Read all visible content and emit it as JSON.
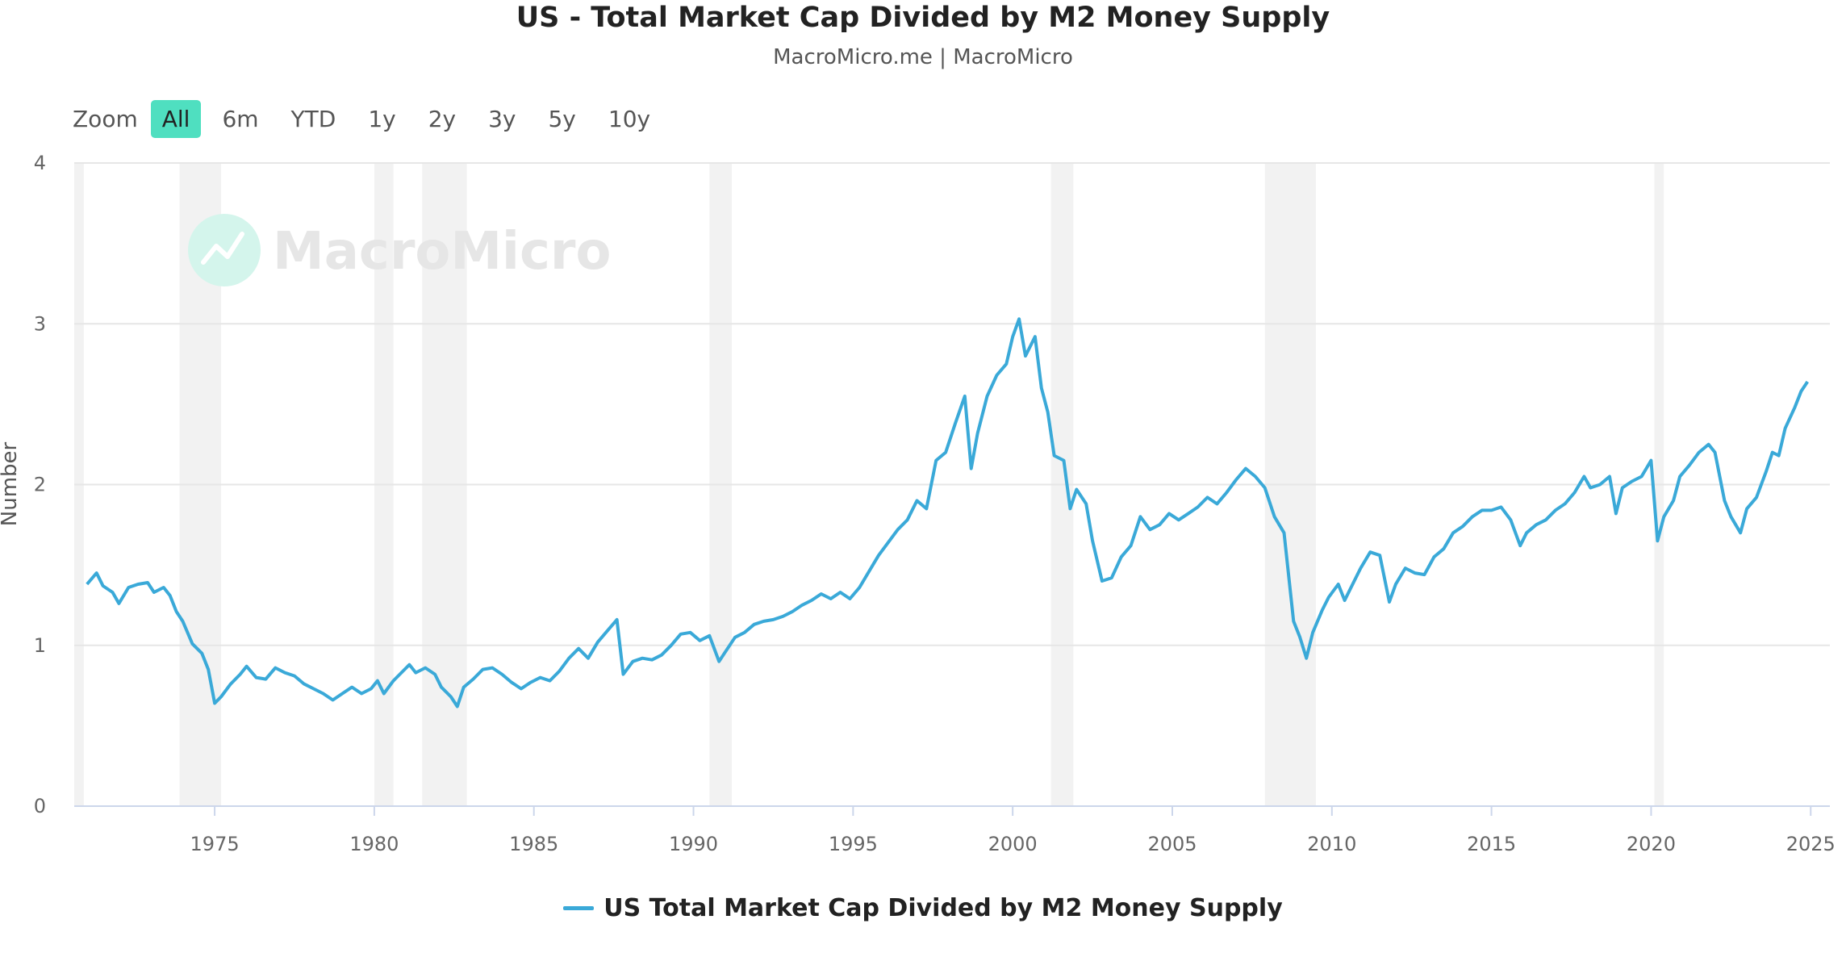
{
  "header": {
    "title": "US - Total Market Cap Divided by M2 Money Supply",
    "subtitle": "MacroMicro.me | MacroMicro"
  },
  "zoom": {
    "label": "Zoom",
    "buttons": [
      {
        "label": "All",
        "active": true
      },
      {
        "label": "6m",
        "active": false
      },
      {
        "label": "YTD",
        "active": false
      },
      {
        "label": "1y",
        "active": false
      },
      {
        "label": "2y",
        "active": false
      },
      {
        "label": "3y",
        "active": false
      },
      {
        "label": "5y",
        "active": false
      },
      {
        "label": "10y",
        "active": false
      }
    ]
  },
  "watermark": {
    "text": "MacroMicro",
    "icon": "chart-logo-icon"
  },
  "colors": {
    "series": "#3aa9d8",
    "zoom_active": "#4fdfc0",
    "recession": "#f2f2f2",
    "grid": "#e6e6e6"
  },
  "chart_data": {
    "type": "line",
    "title": "US - Total Market Cap Divided by M2 Money Supply",
    "ylabel": "Number",
    "xlabel": "",
    "xlim": [
      1970.6,
      2025.6
    ],
    "ylim": [
      0,
      4
    ],
    "y_ticks": [
      0,
      1,
      2,
      3,
      4
    ],
    "x_ticks": [
      1975,
      1980,
      1985,
      1990,
      1995,
      2000,
      2005,
      2010,
      2015,
      2020,
      2025
    ],
    "grid": true,
    "legend_position": "bottom-center",
    "recessions": [
      [
        1970.6,
        1970.9
      ],
      [
        1973.9,
        1975.2
      ],
      [
        1980.0,
        1980.6
      ],
      [
        1981.5,
        1982.9
      ],
      [
        1990.5,
        1991.2
      ],
      [
        2001.2,
        2001.9
      ],
      [
        2007.9,
        2009.5
      ],
      [
        2020.1,
        2020.4
      ]
    ],
    "series": [
      {
        "name": "US Total Market Cap Divided by M2 Money Supply",
        "points": [
          [
            1971.0,
            1.38
          ],
          [
            1971.3,
            1.45
          ],
          [
            1971.5,
            1.37
          ],
          [
            1971.8,
            1.33
          ],
          [
            1972.0,
            1.26
          ],
          [
            1972.3,
            1.36
          ],
          [
            1972.6,
            1.38
          ],
          [
            1972.9,
            1.39
          ],
          [
            1973.1,
            1.33
          ],
          [
            1973.4,
            1.36
          ],
          [
            1973.6,
            1.31
          ],
          [
            1973.8,
            1.21
          ],
          [
            1974.0,
            1.15
          ],
          [
            1974.3,
            1.01
          ],
          [
            1974.6,
            0.95
          ],
          [
            1974.8,
            0.85
          ],
          [
            1975.0,
            0.64
          ],
          [
            1975.2,
            0.68
          ],
          [
            1975.5,
            0.76
          ],
          [
            1975.8,
            0.82
          ],
          [
            1976.0,
            0.87
          ],
          [
            1976.3,
            0.8
          ],
          [
            1976.6,
            0.79
          ],
          [
            1976.9,
            0.86
          ],
          [
            1977.2,
            0.83
          ],
          [
            1977.5,
            0.81
          ],
          [
            1977.8,
            0.76
          ],
          [
            1978.1,
            0.73
          ],
          [
            1978.4,
            0.7
          ],
          [
            1978.7,
            0.66
          ],
          [
            1979.0,
            0.7
          ],
          [
            1979.3,
            0.74
          ],
          [
            1979.6,
            0.7
          ],
          [
            1979.9,
            0.73
          ],
          [
            1980.1,
            0.78
          ],
          [
            1980.3,
            0.7
          ],
          [
            1980.6,
            0.78
          ],
          [
            1980.9,
            0.84
          ],
          [
            1981.1,
            0.88
          ],
          [
            1981.3,
            0.83
          ],
          [
            1981.6,
            0.86
          ],
          [
            1981.9,
            0.82
          ],
          [
            1982.1,
            0.74
          ],
          [
            1982.4,
            0.68
          ],
          [
            1982.6,
            0.62
          ],
          [
            1982.8,
            0.74
          ],
          [
            1983.1,
            0.79
          ],
          [
            1983.4,
            0.85
          ],
          [
            1983.7,
            0.86
          ],
          [
            1984.0,
            0.82
          ],
          [
            1984.3,
            0.77
          ],
          [
            1984.6,
            0.73
          ],
          [
            1984.9,
            0.77
          ],
          [
            1985.2,
            0.8
          ],
          [
            1985.5,
            0.78
          ],
          [
            1985.8,
            0.84
          ],
          [
            1986.1,
            0.92
          ],
          [
            1986.4,
            0.98
          ],
          [
            1986.7,
            0.92
          ],
          [
            1987.0,
            1.02
          ],
          [
            1987.3,
            1.09
          ],
          [
            1987.6,
            1.16
          ],
          [
            1987.8,
            0.82
          ],
          [
            1988.1,
            0.9
          ],
          [
            1988.4,
            0.92
          ],
          [
            1988.7,
            0.91
          ],
          [
            1989.0,
            0.94
          ],
          [
            1989.3,
            1.0
          ],
          [
            1989.6,
            1.07
          ],
          [
            1989.9,
            1.08
          ],
          [
            1990.2,
            1.03
          ],
          [
            1990.5,
            1.06
          ],
          [
            1990.8,
            0.9
          ],
          [
            1991.0,
            0.96
          ],
          [
            1991.3,
            1.05
          ],
          [
            1991.6,
            1.08
          ],
          [
            1991.9,
            1.13
          ],
          [
            1992.2,
            1.15
          ],
          [
            1992.5,
            1.16
          ],
          [
            1992.8,
            1.18
          ],
          [
            1993.1,
            1.21
          ],
          [
            1993.4,
            1.25
          ],
          [
            1993.7,
            1.28
          ],
          [
            1994.0,
            1.32
          ],
          [
            1994.3,
            1.29
          ],
          [
            1994.6,
            1.33
          ],
          [
            1994.9,
            1.29
          ],
          [
            1995.2,
            1.36
          ],
          [
            1995.5,
            1.46
          ],
          [
            1995.8,
            1.56
          ],
          [
            1996.1,
            1.64
          ],
          [
            1996.4,
            1.72
          ],
          [
            1996.7,
            1.78
          ],
          [
            1997.0,
            1.9
          ],
          [
            1997.3,
            1.85
          ],
          [
            1997.6,
            2.15
          ],
          [
            1997.9,
            2.2
          ],
          [
            1998.2,
            2.38
          ],
          [
            1998.5,
            2.55
          ],
          [
            1998.7,
            2.1
          ],
          [
            1998.9,
            2.32
          ],
          [
            1999.2,
            2.55
          ],
          [
            1999.5,
            2.68
          ],
          [
            1999.8,
            2.75
          ],
          [
            2000.0,
            2.92
          ],
          [
            2000.2,
            3.03
          ],
          [
            2000.4,
            2.8
          ],
          [
            2000.7,
            2.92
          ],
          [
            2000.9,
            2.6
          ],
          [
            2001.1,
            2.45
          ],
          [
            2001.3,
            2.18
          ],
          [
            2001.6,
            2.15
          ],
          [
            2001.8,
            1.85
          ],
          [
            2002.0,
            1.97
          ],
          [
            2002.3,
            1.88
          ],
          [
            2002.5,
            1.65
          ],
          [
            2002.8,
            1.4
          ],
          [
            2003.1,
            1.42
          ],
          [
            2003.4,
            1.55
          ],
          [
            2003.7,
            1.62
          ],
          [
            2004.0,
            1.8
          ],
          [
            2004.3,
            1.72
          ],
          [
            2004.6,
            1.75
          ],
          [
            2004.9,
            1.82
          ],
          [
            2005.2,
            1.78
          ],
          [
            2005.5,
            1.82
          ],
          [
            2005.8,
            1.86
          ],
          [
            2006.1,
            1.92
          ],
          [
            2006.4,
            1.88
          ],
          [
            2006.7,
            1.95
          ],
          [
            2007.0,
            2.03
          ],
          [
            2007.3,
            2.1
          ],
          [
            2007.6,
            2.05
          ],
          [
            2007.9,
            1.98
          ],
          [
            2008.2,
            1.8
          ],
          [
            2008.5,
            1.7
          ],
          [
            2008.8,
            1.15
          ],
          [
            2009.0,
            1.05
          ],
          [
            2009.2,
            0.92
          ],
          [
            2009.4,
            1.08
          ],
          [
            2009.7,
            1.22
          ],
          [
            2009.9,
            1.3
          ],
          [
            2010.2,
            1.38
          ],
          [
            2010.4,
            1.28
          ],
          [
            2010.7,
            1.4
          ],
          [
            2010.9,
            1.48
          ],
          [
            2011.2,
            1.58
          ],
          [
            2011.5,
            1.56
          ],
          [
            2011.8,
            1.27
          ],
          [
            2012.0,
            1.38
          ],
          [
            2012.3,
            1.48
          ],
          [
            2012.6,
            1.45
          ],
          [
            2012.9,
            1.44
          ],
          [
            2013.2,
            1.55
          ],
          [
            2013.5,
            1.6
          ],
          [
            2013.8,
            1.7
          ],
          [
            2014.1,
            1.74
          ],
          [
            2014.4,
            1.8
          ],
          [
            2014.7,
            1.84
          ],
          [
            2015.0,
            1.84
          ],
          [
            2015.3,
            1.86
          ],
          [
            2015.6,
            1.78
          ],
          [
            2015.9,
            1.62
          ],
          [
            2016.1,
            1.7
          ],
          [
            2016.4,
            1.75
          ],
          [
            2016.7,
            1.78
          ],
          [
            2017.0,
            1.84
          ],
          [
            2017.3,
            1.88
          ],
          [
            2017.6,
            1.95
          ],
          [
            2017.9,
            2.05
          ],
          [
            2018.1,
            1.98
          ],
          [
            2018.4,
            2.0
          ],
          [
            2018.7,
            2.05
          ],
          [
            2018.9,
            1.82
          ],
          [
            2019.1,
            1.98
          ],
          [
            2019.4,
            2.02
          ],
          [
            2019.7,
            2.05
          ],
          [
            2020.0,
            2.15
          ],
          [
            2020.2,
            1.65
          ],
          [
            2020.4,
            1.8
          ],
          [
            2020.7,
            1.9
          ],
          [
            2020.9,
            2.05
          ],
          [
            2021.2,
            2.12
          ],
          [
            2021.5,
            2.2
          ],
          [
            2021.8,
            2.25
          ],
          [
            2022.0,
            2.2
          ],
          [
            2022.3,
            1.9
          ],
          [
            2022.5,
            1.8
          ],
          [
            2022.8,
            1.7
          ],
          [
            2023.0,
            1.85
          ],
          [
            2023.3,
            1.92
          ],
          [
            2023.6,
            2.08
          ],
          [
            2023.8,
            2.2
          ],
          [
            2024.0,
            2.18
          ],
          [
            2024.2,
            2.35
          ],
          [
            2024.5,
            2.48
          ],
          [
            2024.7,
            2.58
          ],
          [
            2024.9,
            2.64
          ]
        ]
      }
    ]
  }
}
